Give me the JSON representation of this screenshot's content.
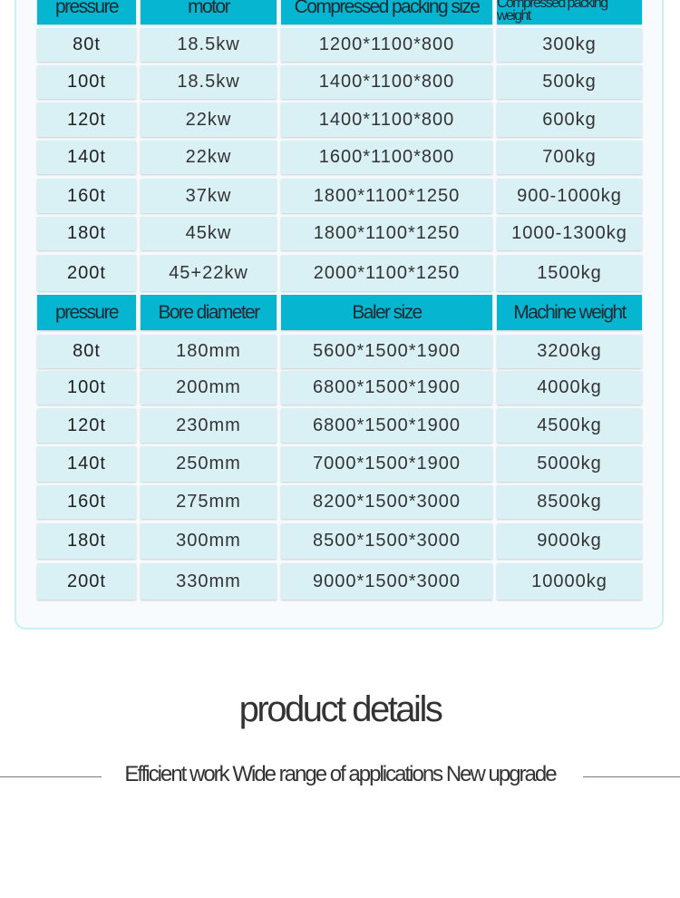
{
  "table1": {
    "headers": [
      "pressure",
      "motor",
      "Compressed packing size",
      "Compressed packing weight"
    ],
    "rows": [
      [
        "80t",
        "18.5kw",
        "1200*1100*800",
        "300kg"
      ],
      [
        "100t",
        "18.5kw",
        "1400*1100*800",
        "500kg"
      ],
      [
        "120t",
        "22kw",
        "1400*1100*800",
        "600kg"
      ],
      [
        "140t",
        "22kw",
        "1600*1100*800",
        "700kg"
      ],
      [
        "160t",
        "37kw",
        "1800*1100*1250",
        "900-1000kg"
      ],
      [
        "180t",
        "45kw",
        "1800*1100*1250",
        "1000-1300kg"
      ],
      [
        "200t",
        "45+22kw",
        "2000*1100*1250",
        "1500kg"
      ]
    ]
  },
  "table2": {
    "headers": [
      "pressure",
      "Bore diameter",
      "Baler size",
      "Machine weight"
    ],
    "rows": [
      [
        "80t",
        "180mm",
        "5600*1500*1900",
        "3200kg"
      ],
      [
        "100t",
        "200mm",
        "6800*1500*1900",
        "4000kg"
      ],
      [
        "120t",
        "230mm",
        "6800*1500*1900",
        "4500kg"
      ],
      [
        "140t",
        "250mm",
        "7000*1500*1900",
        "5000kg"
      ],
      [
        "160t",
        "275mm",
        "8200*1500*3000",
        "8500kg"
      ],
      [
        "180t",
        "300mm",
        "8500*1500*3000",
        "9000kg"
      ],
      [
        "200t",
        "330mm",
        "9000*1500*3000",
        "10000kg"
      ]
    ]
  },
  "section": {
    "title": "product details",
    "subtitle": "Efficient work Wide range of applications New upgrade"
  },
  "colors": {
    "header": "#06b5cf",
    "cell": "#d9f0f5",
    "border": "#c6f1f8"
  }
}
